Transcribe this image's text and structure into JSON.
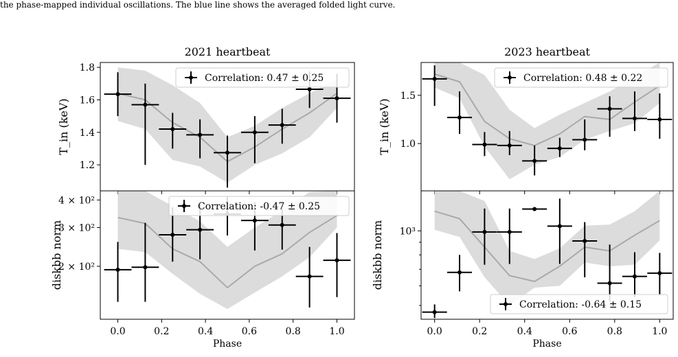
{
  "caption_line": "the phase-mapped individual oscillations. The blue line shows the averaged folded light curve.",
  "colors": {
    "band": "#dcdcdc",
    "line": "#a9a9a9",
    "points": "#000000"
  },
  "chart_data": [
    {
      "type": "scatter",
      "title": "2021 heartbeat",
      "xlabel": "",
      "ylabel": "T_in (keV)",
      "xlim": [
        -0.08,
        1.08
      ],
      "ylim": [
        1.04,
        1.83
      ],
      "yscale": "linear",
      "yticks": [
        1.2,
        1.4,
        1.6,
        1.8
      ],
      "ytick_labels": [
        "1.2",
        "1.4",
        "1.6",
        "1.8"
      ],
      "xticks": [
        0.0,
        0.2,
        0.4,
        0.6,
        0.8,
        1.0
      ],
      "xtick_labels": [
        "0.0",
        "0.2",
        "0.4",
        "0.6",
        "0.8",
        "1.0"
      ],
      "show_xtick_labels": false,
      "legend": "Correlation: 0.47 ± 0.25",
      "legend_position": "top-right",
      "x": [
        0.0,
        0.125,
        0.25,
        0.375,
        0.5,
        0.625,
        0.75,
        0.875,
        1.0
      ],
      "xerr": [
        0.0625,
        0.0625,
        0.0625,
        0.0625,
        0.0625,
        0.0625,
        0.0625,
        0.0625,
        0.0625
      ],
      "y": [
        1.635,
        1.57,
        1.42,
        1.385,
        1.275,
        1.4,
        1.445,
        1.665,
        1.61
      ],
      "y_low": [
        1.5,
        1.2,
        1.3,
        1.24,
        1.06,
        1.21,
        1.33,
        1.55,
        1.46
      ],
      "y_high": [
        1.77,
        1.7,
        1.52,
        1.48,
        1.38,
        1.5,
        1.545,
        1.775,
        1.76
      ],
      "mean_line": {
        "x": [
          0.0,
          0.125,
          0.25,
          0.375,
          0.5,
          0.625,
          0.75,
          0.875,
          1.0
        ],
        "y": [
          1.64,
          1.6,
          1.46,
          1.37,
          1.22,
          1.31,
          1.42,
          1.52,
          1.64
        ],
        "band_low": [
          1.47,
          1.42,
          1.23,
          1.19,
          1.09,
          1.2,
          1.27,
          1.37,
          1.55
        ],
        "band_high": [
          1.8,
          1.78,
          1.69,
          1.58,
          1.37,
          1.44,
          1.55,
          1.64,
          1.73
        ]
      }
    },
    {
      "type": "scatter",
      "title": "",
      "xlabel": "Phase",
      "ylabel": "diskbb norm",
      "xlim": [
        -0.08,
        1.08
      ],
      "ylim": [
        115,
        440
      ],
      "yscale": "log",
      "yticks": [
        200,
        300,
        400
      ],
      "ytick_labels": [
        "2 × 10²",
        "3 × 10²",
        "4 × 10²"
      ],
      "xticks": [
        0.0,
        0.2,
        0.4,
        0.6,
        0.8,
        1.0
      ],
      "xtick_labels": [
        "0.0",
        "0.2",
        "0.4",
        "0.6",
        "0.8",
        "1.0"
      ],
      "show_xtick_labels": true,
      "legend": "Correlation: -0.47 ± 0.25",
      "legend_position": "top-right",
      "x": [
        0.0,
        0.125,
        0.25,
        0.375,
        0.5,
        0.625,
        0.75,
        0.875,
        1.0
      ],
      "xerr": [
        0.0625,
        0.0625,
        0.0625,
        0.0625,
        0.0625,
        0.0625,
        0.0625,
        0.0625,
        0.0625
      ],
      "y": [
        193,
        198,
        278,
        293,
        345,
        323,
        308,
        180,
        213
      ],
      "y_low": [
        138,
        138,
        210,
        215,
        276,
        236,
        238,
        130,
        145
      ],
      "y_high": [
        258,
        315,
        370,
        382,
        415,
        390,
        365,
        245,
        283
      ],
      "mean_line": {
        "x": [
          0.0,
          0.125,
          0.25,
          0.375,
          0.5,
          0.625,
          0.75,
          0.875,
          1.0
        ],
        "y": [
          333,
          313,
          240,
          210,
          160,
          200,
          228,
          285,
          340
        ],
        "band_low": [
          240,
          232,
          185,
          150,
          128,
          152,
          180,
          220,
          300
        ],
        "band_high": [
          440,
          440,
          375,
          320,
          245,
          300,
          358,
          435,
          440
        ]
      }
    },
    {
      "type": "scatter",
      "title": "2023 heartbeat",
      "xlabel": "",
      "ylabel": "T_in (keV)",
      "xlim": [
        -0.06,
        1.06
      ],
      "ylim": [
        0.51,
        1.84
      ],
      "yscale": "linear",
      "yticks": [
        1.0,
        1.5
      ],
      "ytick_labels": [
        "1.0",
        "1.5"
      ],
      "xticks": [
        0.0,
        0.2,
        0.4,
        0.6,
        0.8,
        1.0
      ],
      "xtick_labels": [
        "0.0",
        "0.2",
        "0.4",
        "0.6",
        "0.8",
        "1.0"
      ],
      "show_xtick_labels": false,
      "legend": "Correlation: 0.48 ± 0.22",
      "legend_position": "top-right",
      "x": [
        0.0,
        0.111,
        0.222,
        0.333,
        0.444,
        0.556,
        0.667,
        0.778,
        0.889,
        1.0
      ],
      "xerr": [
        0.055,
        0.055,
        0.055,
        0.055,
        0.055,
        0.055,
        0.055,
        0.055,
        0.055,
        0.055
      ],
      "y": [
        1.67,
        1.27,
        0.99,
        0.98,
        0.82,
        0.95,
        1.04,
        1.36,
        1.26,
        1.25
      ],
      "y_low": [
        1.39,
        1.1,
        0.87,
        0.88,
        0.67,
        0.86,
        0.93,
        1.07,
        1.13,
        1.05
      ],
      "y_high": [
        1.81,
        1.54,
        1.12,
        1.13,
        0.98,
        1.06,
        1.25,
        1.49,
        1.54,
        1.52
      ],
      "mean_line": {
        "x": [
          0.0,
          0.111,
          0.222,
          0.333,
          0.444,
          0.556,
          0.667,
          0.778,
          0.889,
          1.0
        ],
        "y": [
          1.72,
          1.64,
          1.23,
          1.05,
          0.98,
          1.1,
          1.28,
          1.25,
          1.43,
          1.6
        ],
        "band_low": [
          1.58,
          1.47,
          0.97,
          0.63,
          0.78,
          0.86,
          1.04,
          1.13,
          1.21,
          1.42
        ],
        "band_high": [
          1.84,
          1.84,
          1.71,
          1.35,
          1.16,
          1.3,
          1.42,
          1.54,
          1.69,
          1.84
        ]
      }
    },
    {
      "type": "scatter",
      "title": "",
      "xlabel": "Phase",
      "ylabel": "diskbb norm",
      "xlim": [
        -0.06,
        1.06
      ],
      "ylim": [
        440,
        1450
      ],
      "yscale": "log",
      "yticks": [
        1000
      ],
      "ytick_labels": [
        "10³"
      ],
      "show_xtick_labels": true,
      "xticks": [
        0.0,
        0.2,
        0.4,
        0.6,
        0.8,
        1.0
      ],
      "xtick_labels": [
        "0.0",
        "0.2",
        "0.4",
        "0.6",
        "0.8",
        "1.0"
      ],
      "legend": "Correlation: -0.64 ± 0.15",
      "legend_position": "bottom-right",
      "x": [
        0.0,
        0.111,
        0.222,
        0.333,
        0.444,
        0.556,
        0.667,
        0.778,
        0.889,
        1.0
      ],
      "xerr": [
        0.055,
        0.055,
        0.055,
        0.055,
        0.055,
        0.055,
        0.055,
        0.055,
        0.055,
        0.055
      ],
      "y": [
        470,
        680,
        990,
        990,
        1225,
        1045,
        910,
        615,
        655,
        675
      ],
      "y_low": [
        445,
        570,
        730,
        735,
        1215,
        735,
        650,
        520,
        540,
        555
      ],
      "y_high": [
        505,
        800,
        1230,
        1230,
        1240,
        1350,
        1085,
        880,
        820,
        815
      ],
      "mean_line": {
        "x": [
          0.0,
          0.111,
          0.222,
          0.333,
          0.444,
          0.556,
          0.667,
          0.778,
          0.889,
          1.0
        ],
        "y": [
          1200,
          1120,
          860,
          660,
          625,
          720,
          860,
          830,
          960,
          1100
        ],
        "band_low": [
          1010,
          945,
          650,
          500,
          590,
          600,
          745,
          720,
          730,
          915
        ],
        "band_high": [
          1450,
          1450,
          1320,
          830,
          770,
          850,
          1050,
          1060,
          1200,
          1450
        ]
      }
    }
  ]
}
